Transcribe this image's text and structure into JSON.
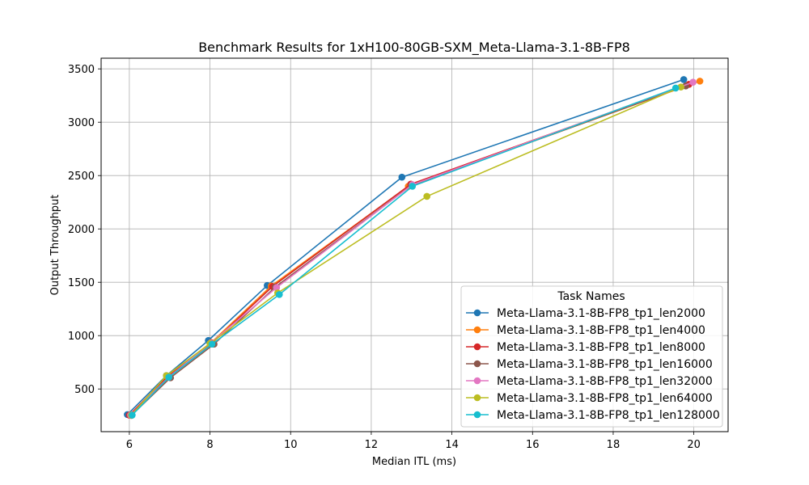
{
  "chart_data": {
    "type": "line",
    "title": "Benchmark Results for 1xH100-80GB-SXM_Meta-Llama-3.1-8B-FP8",
    "xlabel": "Median ITL (ms)",
    "ylabel": "Output Throughput",
    "xlim": [
      5.3,
      20.85
    ],
    "ylim": [
      100,
      3600
    ],
    "xticks": [
      6,
      8,
      10,
      12,
      14,
      16,
      18,
      20
    ],
    "yticks": [
      500,
      1000,
      1500,
      2000,
      2500,
      3000,
      3500
    ],
    "grid": true,
    "legend": {
      "title": "Task Names",
      "placement": "lower-right"
    },
    "series": [
      {
        "name": "Meta-Llama-3.1-8B-FP8_tp1_len2000",
        "color": "#1f77b4",
        "x": [
          5.95,
          6.92,
          7.96,
          9.42,
          12.76,
          19.75
        ],
        "y": [
          260,
          625,
          955,
          1470,
          2485,
          3400
        ]
      },
      {
        "name": "Meta-Llama-3.1-8B-FP8_tp1_len4000",
        "color": "#ff7f0e",
        "x": [
          6.02,
          6.93,
          8.03,
          9.52,
          12.92,
          20.15
        ],
        "y": [
          255,
          620,
          935,
          1465,
          2400,
          3385
        ]
      },
      {
        "name": "Meta-Llama-3.1-8B-FP8_tp1_len8000",
        "color": "#d62728",
        "x": [
          6.0,
          6.95,
          8.05,
          9.55,
          12.98,
          19.88
        ],
        "y": [
          255,
          615,
          930,
          1460,
          2420,
          3355
        ]
      },
      {
        "name": "Meta-Llama-3.1-8B-FP8_tp1_len16000",
        "color": "#8c564b",
        "x": [
          6.05,
          7.02,
          8.1,
          9.62,
          13.0,
          19.8
        ],
        "y": [
          252,
          605,
          920,
          1455,
          2410,
          3340
        ]
      },
      {
        "name": "Meta-Llama-3.1-8B-FP8_tp1_len32000",
        "color": "#e377c2",
        "x": [
          6.03,
          6.98,
          8.02,
          9.65,
          13.02,
          19.98
        ],
        "y": [
          255,
          612,
          930,
          1450,
          2415,
          3375
        ]
      },
      {
        "name": "Meta-Llama-3.1-8B-FP8_tp1_len64000",
        "color": "#bcbd22",
        "x": [
          6.05,
          6.92,
          8.0,
          9.68,
          13.38,
          19.68
        ],
        "y": [
          255,
          625,
          925,
          1400,
          2305,
          3330
        ]
      },
      {
        "name": "Meta-Llama-3.1-8B-FP8_tp1_len128000",
        "color": "#17becf",
        "x": [
          6.07,
          6.98,
          8.05,
          9.72,
          13.02,
          19.55
        ],
        "y": [
          255,
          610,
          920,
          1385,
          2400,
          3320
        ]
      }
    ]
  }
}
